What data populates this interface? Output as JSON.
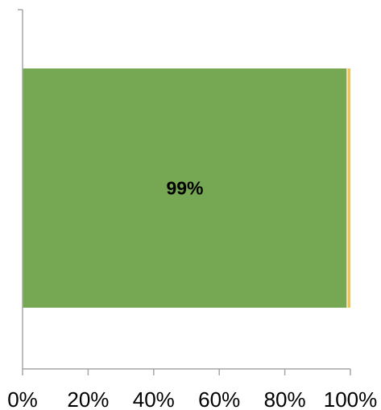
{
  "chart_data": {
    "type": "bar",
    "orientation": "horizontal",
    "stacked": true,
    "categories": [
      ""
    ],
    "series": [
      {
        "values": [
          99
        ],
        "color": "#76a853",
        "label": "99%"
      },
      {
        "values": [
          1
        ],
        "color": "#f2c14e",
        "label": ""
      }
    ],
    "xlim": [
      0,
      100
    ],
    "x_ticks": [
      "0%",
      "20%",
      "40%",
      "60%",
      "80%",
      "100%"
    ],
    "grid": false,
    "legend": "none"
  }
}
